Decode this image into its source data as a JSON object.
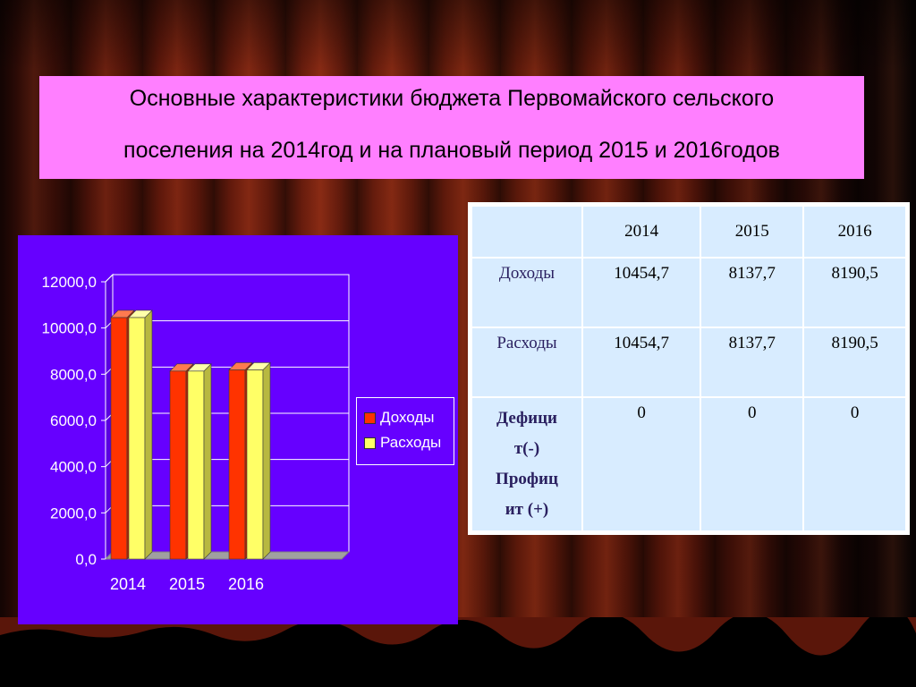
{
  "title": {
    "line1": "Основные характеристики бюджета Первомайского сельского",
    "line2": "поселения на 2014год и на плановый период 2015 и 2016годов"
  },
  "chart_data": {
    "type": "bar",
    "categories": [
      "2014",
      "2015",
      "2016"
    ],
    "series": [
      {
        "name": "Доходы",
        "values": [
          10454.7,
          8137.7,
          8190.5
        ],
        "color": "#ff3300"
      },
      {
        "name": "Расходы",
        "values": [
          10454.7,
          8137.7,
          8190.5
        ],
        "color": "#ffff66"
      }
    ],
    "y_ticks": [
      "0,0",
      "2000,0",
      "4000,0",
      "6000,0",
      "8000,0",
      "10000,0",
      "12000,0"
    ],
    "ylim": [
      0,
      12000
    ],
    "grid": true,
    "legend_position": "right",
    "style": "3d"
  },
  "table": {
    "header": [
      "",
      "2014",
      "2015",
      "2016"
    ],
    "rows": [
      {
        "label": "Доходы",
        "values": [
          "10454,7",
          "8137,7",
          "8190,5"
        ]
      },
      {
        "label": "Расходы",
        "values": [
          "10454,7",
          "8137,7",
          "8190,5"
        ]
      }
    ],
    "deficit": {
      "label1": "Дефици",
      "label2": "т(-)",
      "label3": "Профиц",
      "label4": "ит (+)",
      "values": [
        "0",
        "0",
        "0"
      ]
    }
  }
}
